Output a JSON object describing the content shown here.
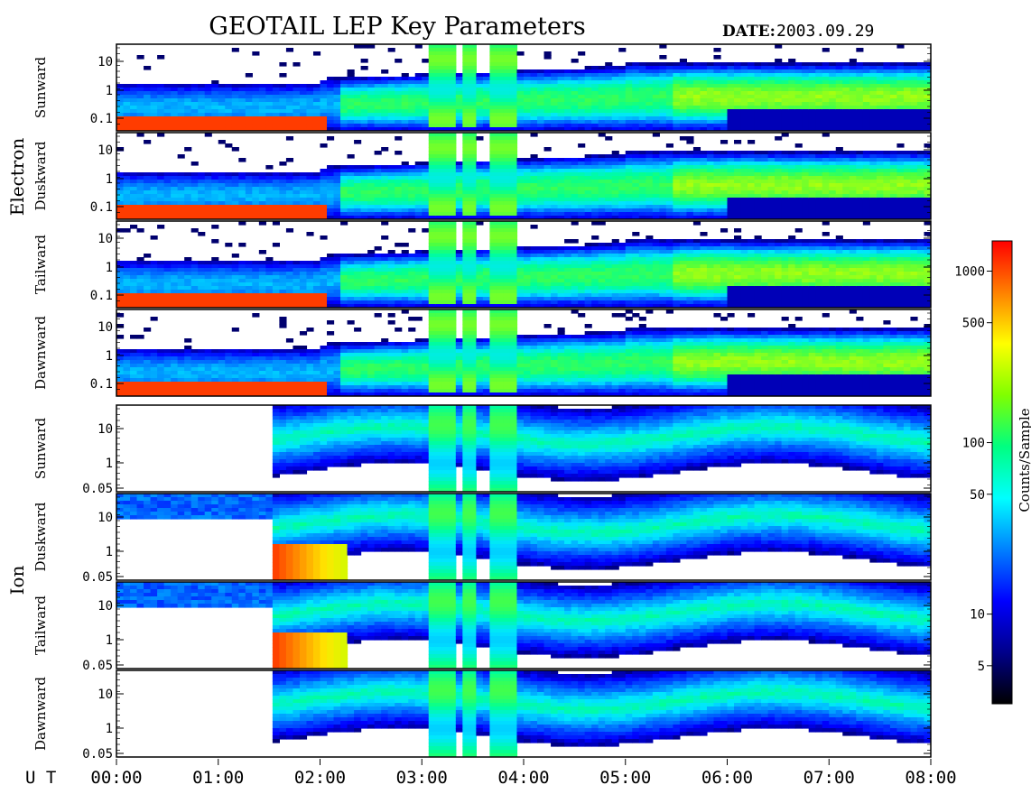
{
  "title": "GEOTAIL LEP Key Parameters",
  "date_label": "DATE:",
  "date_value": "2003.09.29",
  "colorbar": {
    "label": "Counts/Sample",
    "scale": "log",
    "range": [
      3,
      1500
    ],
    "ticks": [
      "1000",
      "500",
      "100",
      "50",
      "10",
      "5"
    ],
    "tick_values": [
      1000,
      500,
      100,
      50,
      10,
      5
    ],
    "colors": [
      "#000000",
      "#00008b",
      "#0000ff",
      "#0080ff",
      "#00ffff",
      "#00ff80",
      "#80ff00",
      "#ffff00",
      "#ff8000",
      "#ff0000"
    ]
  },
  "groups": [
    {
      "name": "Electron",
      "panels": [
        {
          "name": "Sunward",
          "yticks": [
            "10",
            "1",
            "0.1"
          ]
        },
        {
          "name": "Duskward",
          "yticks": [
            "10",
            "1",
            "0.1"
          ]
        },
        {
          "name": "Tailward",
          "yticks": [
            "10",
            "1",
            "0.1"
          ]
        },
        {
          "name": "Dawnward",
          "yticks": [
            "10",
            "1",
            "0.1"
          ]
        }
      ]
    },
    {
      "name": "Ion",
      "panels": [
        {
          "name": "Sunward",
          "yticks": [
            "10",
            "1",
            "0.05"
          ]
        },
        {
          "name": "Duskward",
          "yticks": [
            "10",
            "1",
            "0.05"
          ]
        },
        {
          "name": "Tailward",
          "yticks": [
            "10",
            "1",
            "0.05"
          ]
        },
        {
          "name": "Dawnward",
          "yticks": [
            "10",
            "1",
            "0.05"
          ]
        }
      ]
    }
  ],
  "x_axis": {
    "label": "U T",
    "ticks": [
      "00:00",
      "01:00",
      "02:00",
      "03:00",
      "04:00",
      "05:00",
      "06:00",
      "07:00",
      "08:00"
    ]
  },
  "chart_data": {
    "type": "heatmap",
    "title": "GEOTAIL LEP Key Parameters",
    "date": "2003.09.29",
    "xlabel": "U T",
    "x_range_hours": [
      0,
      8
    ],
    "xticks": [
      "00:00",
      "01:00",
      "02:00",
      "03:00",
      "04:00",
      "05:00",
      "06:00",
      "07:00",
      "08:00"
    ],
    "colorbar_label": "Counts/Sample",
    "colorbar_ticks": [
      1000,
      500,
      100,
      50,
      10,
      5
    ],
    "panels": [
      {
        "species": "Electron",
        "direction": "Sunward",
        "yscale": "log",
        "ylim": [
          0.05,
          20
        ],
        "yticks": [
          10,
          1,
          0.1
        ]
      },
      {
        "species": "Electron",
        "direction": "Duskward",
        "yscale": "log",
        "ylim": [
          0.05,
          20
        ],
        "yticks": [
          10,
          1,
          0.1
        ]
      },
      {
        "species": "Electron",
        "direction": "Tailward",
        "yscale": "log",
        "ylim": [
          0.05,
          20
        ],
        "yticks": [
          10,
          1,
          0.1
        ]
      },
      {
        "species": "Electron",
        "direction": "Dawnward",
        "yscale": "log",
        "ylim": [
          0.05,
          20
        ],
        "yticks": [
          10,
          1,
          0.1
        ]
      },
      {
        "species": "Ion",
        "direction": "Sunward",
        "yscale": "log",
        "ylim": [
          0.04,
          30
        ],
        "yticks": [
          10,
          1,
          0.05
        ]
      },
      {
        "species": "Ion",
        "direction": "Duskward",
        "yscale": "log",
        "ylim": [
          0.04,
          30
        ],
        "yticks": [
          10,
          1,
          0.05
        ]
      },
      {
        "species": "Ion",
        "direction": "Tailward",
        "yscale": "log",
        "ylim": [
          0.04,
          30
        ],
        "yticks": [
          10,
          1,
          0.05
        ]
      },
      {
        "species": "Ion",
        "direction": "Dawnward",
        "yscale": "log",
        "ylim": [
          0.04,
          30
        ],
        "yticks": [
          10,
          1,
          0.05
        ]
      }
    ]
  }
}
